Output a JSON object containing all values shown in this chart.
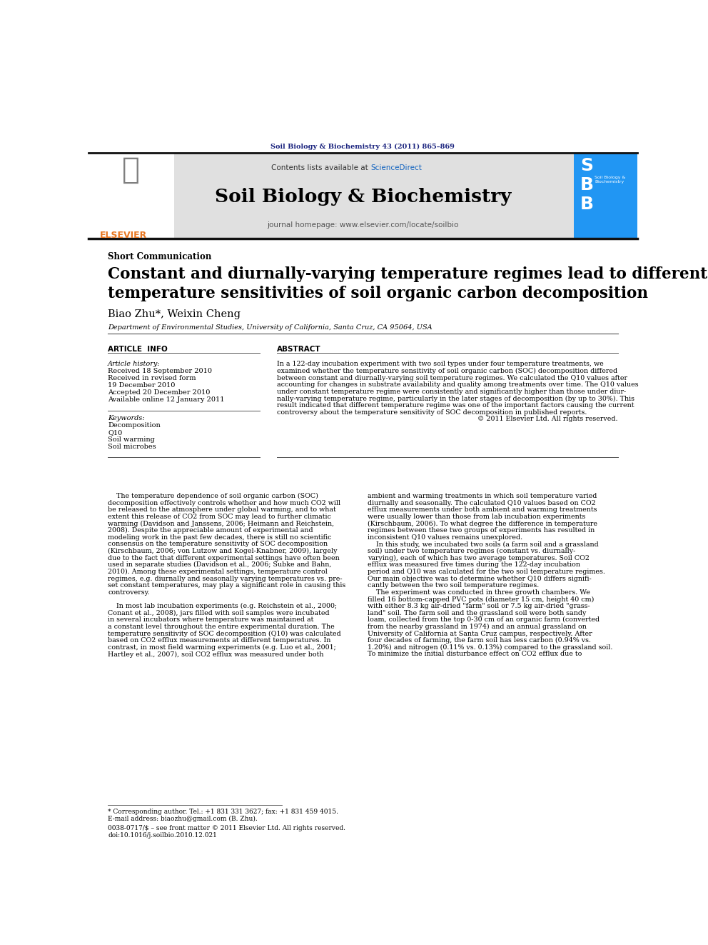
{
  "page_width": 9.92,
  "page_height": 13.23,
  "bg_color": "#ffffff",
  "top_journal_ref": "Soil Biology & Biochemistry 43 (2011) 865–869",
  "top_ref_color": "#1a237e",
  "header_bg": "#e0e0e0",
  "elsevier_color": "#e87722",
  "contents_text": "Contents lists available at ",
  "sciencedirect_text": "ScienceDirect",
  "sciencedirect_color": "#1565c0",
  "journal_name": "Soil Biology & Biochemistry",
  "journal_homepage": "journal homepage: www.elsevier.com/locate/soilbio",
  "section_label": "Short Communication",
  "article_title_line1": "Constant and diurnally-varying temperature regimes lead to different",
  "article_title_line2": "temperature sensitivities of soil organic carbon decomposition",
  "authors": "Biao Zhu*, Weixin Cheng",
  "affiliation": "Department of Environmental Studies, University of California, Santa Cruz, CA 95064, USA",
  "article_info_header": "ARTICLE  INFO",
  "abstract_header": "ABSTRACT",
  "article_history_label": "Article history:",
  "received1": "Received 18 September 2010",
  "received_revised": "Received in revised form",
  "received_revised2": "19 December 2010",
  "accepted": "Accepted 20 December 2010",
  "available": "Available online 12 January 2011",
  "keywords_label": "Keywords:",
  "keyword1": "Decomposition",
  "keyword2": "Q10",
  "keyword3": "Soil warming",
  "keyword4": "Soil microbes",
  "copyright": "© 2011 Elsevier Ltd. All rights reserved.",
  "footer_text1": "* Corresponding author. Tel.: +1 831 331 3627; fax: +1 831 459 4015.",
  "footer_text2": "E-mail address: biaozhu@gmail.com (B. Zhu).",
  "footer_issn": "0038-0717/$ – see front matter © 2011 Elsevier Ltd. All rights reserved.",
  "footer_doi": "doi:10.1016/j.soilbio.2010.12.021",
  "dark_navy": "#1a237e",
  "link_blue": "#1565c0",
  "text_black": "#000000",
  "abstract_lines": [
    "In a 122-day incubation experiment with two soil types under four temperature treatments, we",
    "examined whether the temperature sensitivity of soil organic carbon (SOC) decomposition differed",
    "between constant and diurnally-varying soil temperature regimes. We calculated the Q10 values after",
    "accounting for changes in substrate availability and quality among treatments over time. The Q10 values",
    "under constant temperature regime were consistently and significantly higher than those under diur-",
    "nally-varying temperature regime, particularly in the later stages of decomposition (by up to 30%). This",
    "result indicated that different temperature regime was one of the important factors causing the current",
    "controversy about the temperature sensitivity of SOC decomposition in published reports."
  ],
  "body_left": [
    "    The temperature dependence of soil organic carbon (SOC)",
    "decomposition effectively controls whether and how much CO2 will",
    "be released to the atmosphere under global warming, and to what",
    "extent this release of CO2 from SOC may lead to further climatic",
    "warming (Davidson and Janssens, 2006; Heimann and Reichstein,",
    "2008). Despite the appreciable amount of experimental and",
    "modeling work in the past few decades, there is still no scientific",
    "consensus on the temperature sensitivity of SOC decomposition",
    "(Kirschbaum, 2006; von Lutzow and Kogel-Knabner, 2009), largely",
    "due to the fact that different experimental settings have often been",
    "used in separate studies (Davidson et al., 2006; Subke and Bahn,",
    "2010). Among these experimental settings, temperature control",
    "regimes, e.g. diurnally and seasonally varying temperatures vs. pre-",
    "set constant temperatures, may play a significant role in causing this",
    "controversy.",
    "",
    "    In most lab incubation experiments (e.g. Reichstein et al., 2000;",
    "Conant et al., 2008), jars filled with soil samples were incubated",
    "in several incubators where temperature was maintained at",
    "a constant level throughout the entire experimental duration. The",
    "temperature sensitivity of SOC decomposition (Q10) was calculated",
    "based on CO2 efflux measurements at different temperatures. In",
    "contrast, in most field warming experiments (e.g. Luo et al., 2001;",
    "Hartley et al., 2007), soil CO2 efflux was measured under both"
  ],
  "body_right": [
    "ambient and warming treatments in which soil temperature varied",
    "diurnally and seasonally. The calculated Q10 values based on CO2",
    "efflux measurements under both ambient and warming treatments",
    "were usually lower than those from lab incubation experiments",
    "(Kirschbaum, 2006). To what degree the difference in temperature",
    "regimes between these two groups of experiments has resulted in",
    "inconsistent Q10 values remains unexplored.",
    "    In this study, we incubated two soils (a farm soil and a grassland",
    "soil) under two temperature regimes (constant vs. diurnally-",
    "varying), each of which has two average temperatures. Soil CO2",
    "efflux was measured five times during the 122-day incubation",
    "period and Q10 was calculated for the two soil temperature regimes.",
    "Our main objective was to determine whether Q10 differs signifi-",
    "cantly between the two soil temperature regimes.",
    "    The experiment was conducted in three growth chambers. We",
    "filled 16 bottom-capped PVC pots (diameter 15 cm, height 40 cm)",
    "with either 8.3 kg air-dried \"farm\" soil or 7.5 kg air-dried \"grass-",
    "land\" soil. The farm soil and the grassland soil were both sandy",
    "loam, collected from the top 0-30 cm of an organic farm (converted",
    "from the nearby grassland in 1974) and an annual grassland on",
    "University of California at Santa Cruz campus, respectively. After",
    "four decades of farming, the farm soil has less carbon (0.94% vs.",
    "1.20%) and nitrogen (0.11% vs. 0.13%) compared to the grassland soil.",
    "To minimize the initial disturbance effect on CO2 efflux due to"
  ]
}
